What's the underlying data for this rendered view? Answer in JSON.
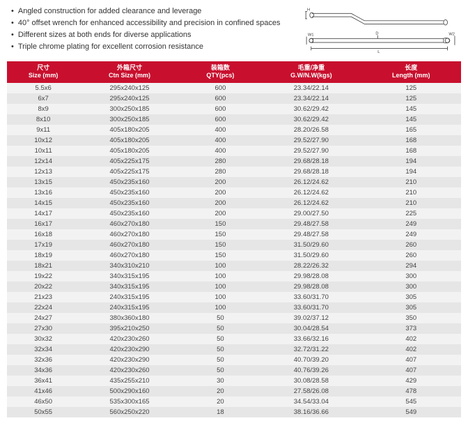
{
  "features": [
    "Angled construction for added clearance and leverage",
    "40° offset wrench for enhanced accessibility and precision in confined spaces",
    "Different sizes at both ends for diverse applications",
    "Triple chrome plating for excellent corrosion resistance"
  ],
  "diagram": {
    "labels": {
      "H": "H",
      "D": "D",
      "W1": "W1",
      "W2": "W2",
      "L": "L"
    }
  },
  "table": {
    "header_color": "#c8102e",
    "row_stripe_a": "#f2f2f2",
    "row_stripe_b": "#e6e6e6",
    "columns": [
      {
        "cn": "尺寸",
        "en": "Size (mm)",
        "key": "size"
      },
      {
        "cn": "外箱尺寸",
        "en": "Ctn Size (mm)",
        "key": "ctn"
      },
      {
        "cn": "装箱数",
        "en": "QTY(pcs)",
        "key": "qty"
      },
      {
        "cn": "毛重/净重",
        "en": "G.W/N.W(kgs)",
        "key": "gw"
      },
      {
        "cn": "长度",
        "en": "Length (mm)",
        "key": "len"
      }
    ],
    "rows": [
      {
        "size": "5.5x6",
        "ctn": "295x240x125",
        "qty": "600",
        "gw": "23.34/22.14",
        "len": "125"
      },
      {
        "size": "6x7",
        "ctn": "295x240x125",
        "qty": "600",
        "gw": "23.34/22.14",
        "len": "125"
      },
      {
        "size": "8x9",
        "ctn": "300x250x185",
        "qty": "600",
        "gw": "30.62/29.42",
        "len": "145"
      },
      {
        "size": "8x10",
        "ctn": "300x250x185",
        "qty": "600",
        "gw": "30.62/29.42",
        "len": "145"
      },
      {
        "size": "9x11",
        "ctn": "405x180x205",
        "qty": "400",
        "gw": "28.20/26.58",
        "len": "165"
      },
      {
        "size": "10x12",
        "ctn": "405x180x205",
        "qty": "400",
        "gw": "29.52/27.90",
        "len": "168"
      },
      {
        "size": "10x11",
        "ctn": "405x180x205",
        "qty": "400",
        "gw": "29.52/27.90",
        "len": "168"
      },
      {
        "size": "12x14",
        "ctn": "405x225x175",
        "qty": "280",
        "gw": "29.68/28.18",
        "len": "194"
      },
      {
        "size": "12x13",
        "ctn": "405x225x175",
        "qty": "280",
        "gw": "29.68/28.18",
        "len": "194"
      },
      {
        "size": "13x15",
        "ctn": "450x235x160",
        "qty": "200",
        "gw": "26.12/24.62",
        "len": "210"
      },
      {
        "size": "13x16",
        "ctn": "450x235x160",
        "qty": "200",
        "gw": "26.12/24.62",
        "len": "210"
      },
      {
        "size": "14x15",
        "ctn": "450x235x160",
        "qty": "200",
        "gw": "26.12/24.62",
        "len": "210"
      },
      {
        "size": "14x17",
        "ctn": "450x235x160",
        "qty": "200",
        "gw": "29.00/27.50",
        "len": "225"
      },
      {
        "size": "16x17",
        "ctn": "460x270x180",
        "qty": "150",
        "gw": "29.48/27.58",
        "len": "249"
      },
      {
        "size": "16x18",
        "ctn": "460x270x180",
        "qty": "150",
        "gw": "29.48/27.58",
        "len": "249"
      },
      {
        "size": "17x19",
        "ctn": "460x270x180",
        "qty": "150",
        "gw": "31.50/29.60",
        "len": "260"
      },
      {
        "size": "18x19",
        "ctn": "460x270x180",
        "qty": "150",
        "gw": "31.50/29.60",
        "len": "260"
      },
      {
        "size": "18x21",
        "ctn": "340x310x210",
        "qty": "100",
        "gw": "28.22/26.32",
        "len": "294"
      },
      {
        "size": "19x22",
        "ctn": "340x315x195",
        "qty": "100",
        "gw": "29.98/28.08",
        "len": "300"
      },
      {
        "size": "20x22",
        "ctn": "340x315x195",
        "qty": "100",
        "gw": "29.98/28.08",
        "len": "300"
      },
      {
        "size": "21x23",
        "ctn": "240x315x195",
        "qty": "100",
        "gw": "33.60/31.70",
        "len": "305"
      },
      {
        "size": "22x24",
        "ctn": "240x315x195",
        "qty": "100",
        "gw": "33.60/31.70",
        "len": "305"
      },
      {
        "size": "24x27",
        "ctn": "380x360x180",
        "qty": "50",
        "gw": "39.02/37.12",
        "len": "350"
      },
      {
        "size": "27x30",
        "ctn": "395x210x250",
        "qty": "50",
        "gw": "30.04/28.54",
        "len": "373"
      },
      {
        "size": "30x32",
        "ctn": "420x230x260",
        "qty": "50",
        "gw": "33.66/32.16",
        "len": "402"
      },
      {
        "size": "32x34",
        "ctn": "420x230x290",
        "qty": "50",
        "gw": "32.72/31.22",
        "len": "402"
      },
      {
        "size": "32x36",
        "ctn": "420x230x290",
        "qty": "50",
        "gw": "40.70/39.20",
        "len": "407"
      },
      {
        "size": "34x36",
        "ctn": "420x230x260",
        "qty": "50",
        "gw": "40.76/39.26",
        "len": "407"
      },
      {
        "size": "36x41",
        "ctn": "435x255x210",
        "qty": "30",
        "gw": "30.08/28.58",
        "len": "429"
      },
      {
        "size": "41x46",
        "ctn": "500x290x160",
        "qty": "20",
        "gw": "27.58/26.08",
        "len": "478"
      },
      {
        "size": "46x50",
        "ctn": "535x300x165",
        "qty": "20",
        "gw": "34.54/33.04",
        "len": "545"
      },
      {
        "size": "50x55",
        "ctn": "560x250x220",
        "qty": "18",
        "gw": "38.16/36.66",
        "len": "549"
      }
    ]
  }
}
